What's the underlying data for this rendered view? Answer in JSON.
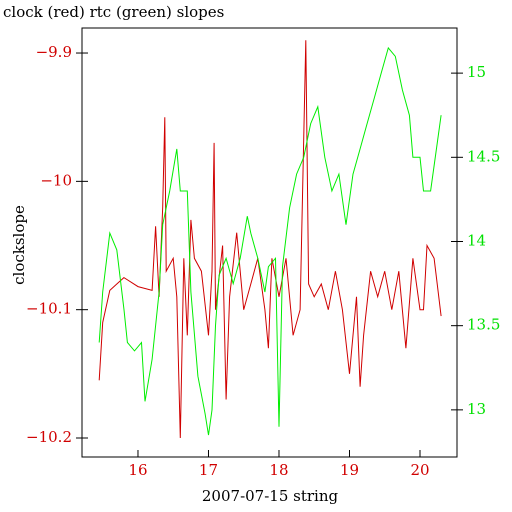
{
  "chart_data": {
    "type": "line",
    "title": "clock (red) rtc (green) slopes",
    "x_label": "2007-07-15 string",
    "y_label": "clockslope",
    "xlim": [
      15.206,
      20.525
    ],
    "xticks": [
      16,
      17,
      18,
      19,
      20
    ],
    "ylim": [
      -10.2148,
      -9.8805
    ],
    "yticks": [
      {
        "value": -9.9,
        "label": "−9.9"
      },
      {
        "value": -10,
        "label": "−10"
      },
      {
        "value": -10.1,
        "label": "−10.1"
      },
      {
        "value": -10.2,
        "label": "−10.2"
      }
    ],
    "y2lim": [
      12.72,
      15.268
    ],
    "y2ticks": [
      13,
      13.5,
      14,
      14.5,
      15
    ],
    "axis_color": "#d00000",
    "axis2_color": "#00e000",
    "series": [
      {
        "color": "#d00000",
        "x": [
          15.45,
          15.5,
          15.6,
          15.7,
          15.8,
          16.0,
          16.2,
          16.25,
          16.3,
          16.35,
          16.38,
          16.4,
          16.5,
          16.55,
          16.6,
          16.65,
          16.7,
          16.75,
          16.8,
          16.9,
          17.0,
          17.05,
          17.08,
          17.1,
          17.2,
          17.25,
          17.3,
          17.4,
          17.5,
          17.6,
          17.7,
          17.8,
          17.85,
          17.9,
          18.0,
          18.1,
          18.2,
          18.3,
          18.38,
          18.42,
          18.5,
          18.6,
          18.7,
          18.8,
          18.9,
          19.0,
          19.1,
          19.15,
          19.2,
          19.3,
          19.4,
          19.5,
          19.6,
          19.7,
          19.8,
          19.9,
          20.0,
          20.05,
          20.1,
          20.2,
          20.3
        ],
        "values": [
          -10.155,
          -10.11,
          -10.085,
          -10.08,
          -10.075,
          -10.082,
          -10.085,
          -10.035,
          -10.09,
          -10.02,
          -9.95,
          -10.07,
          -10.06,
          -10.09,
          -10.2,
          -10.06,
          -10.12,
          -10.03,
          -10.06,
          -10.07,
          -10.12,
          -10.07,
          -9.97,
          -10.1,
          -10.05,
          -10.17,
          -10.09,
          -10.04,
          -10.1,
          -10.08,
          -10.06,
          -10.1,
          -10.13,
          -10.06,
          -10.09,
          -10.06,
          -10.12,
          -10.1,
          -9.89,
          -10.08,
          -10.09,
          -10.08,
          -10.1,
          -10.07,
          -10.1,
          -10.15,
          -10.09,
          -10.16,
          -10.12,
          -10.07,
          -10.09,
          -10.07,
          -10.1,
          -10.07,
          -10.13,
          -10.06,
          -10.1,
          -10.1,
          -10.05,
          -10.06,
          -10.105
        ]
      },
      {
        "color": "#00ee00",
        "axis": "y2",
        "x": [
          15.45,
          15.5,
          15.6,
          15.7,
          15.8,
          15.85,
          15.95,
          16.05,
          16.1,
          16.2,
          16.3,
          16.35,
          16.45,
          16.55,
          16.6,
          16.7,
          16.75,
          16.85,
          16.95,
          17.0,
          17.05,
          17.1,
          17.15,
          17.25,
          17.35,
          17.45,
          17.55,
          17.6,
          17.7,
          17.8,
          17.85,
          17.95,
          18.0,
          18.05,
          18.15,
          18.25,
          18.35,
          18.45,
          18.55,
          18.65,
          18.75,
          18.85,
          18.95,
          19.05,
          19.15,
          19.25,
          19.35,
          19.45,
          19.55,
          19.65,
          19.75,
          19.85,
          19.9,
          20.0,
          20.05,
          20.15,
          20.25,
          20.3
        ],
        "values": [
          13.4,
          13.7,
          14.05,
          13.95,
          13.6,
          13.4,
          13.35,
          13.4,
          13.05,
          13.3,
          13.7,
          14.1,
          14.3,
          14.55,
          14.3,
          14.3,
          13.7,
          13.2,
          12.98,
          12.85,
          13.0,
          13.5,
          13.8,
          13.9,
          13.75,
          13.9,
          14.15,
          14.05,
          13.9,
          13.7,
          13.85,
          13.9,
          12.9,
          13.85,
          14.2,
          14.4,
          14.5,
          14.7,
          14.8,
          14.5,
          14.3,
          14.4,
          14.1,
          14.4,
          14.55,
          14.7,
          14.85,
          15.0,
          15.15,
          15.1,
          14.9,
          14.75,
          14.5,
          14.5,
          14.3,
          14.3,
          14.6,
          14.75
        ]
      }
    ]
  }
}
